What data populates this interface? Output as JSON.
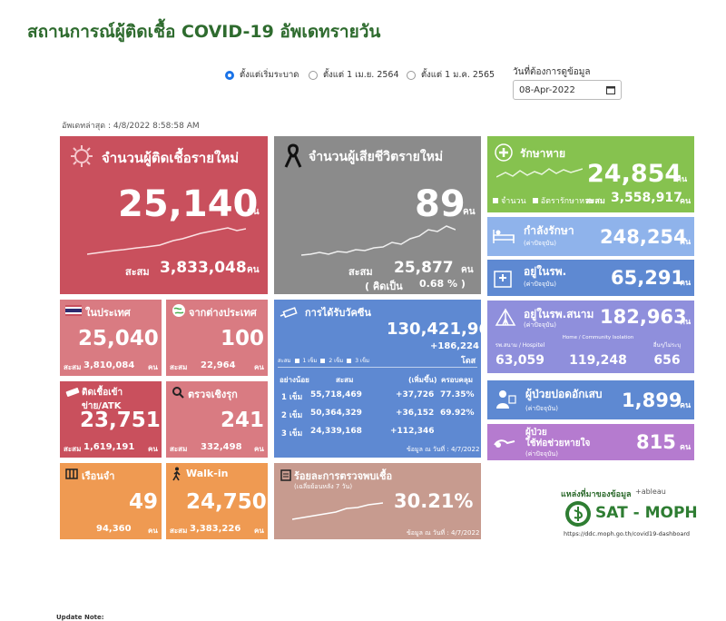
{
  "page": {
    "title": "สถานการณ์ผู้ติดเชื้อ COVID-19 อัพเดทรายวัน",
    "updated": "อัพเดทล่าสุด : 4/8/2022 8:58:58 AM",
    "note": "Update Note:"
  },
  "filters": {
    "options": [
      "ตั้งแต่เริ่มระบาด",
      "ตั้งแต่ 1 เม.ย. 2564",
      "ตั้งแต่ 1 ม.ค. 2565"
    ],
    "selected_index": 0,
    "date_label": "วันที่ต้องการดูข้อมูล",
    "date_value": "08-Apr-2022"
  },
  "new_cases": {
    "title": "จำนวนผู้ติดเชื้อรายใหม่",
    "value": "25,140",
    "unit": "คน",
    "cum_label": "สะสม",
    "cum_value": "3,833,048",
    "cum_unit": "คน"
  },
  "new_deaths": {
    "title": "จำนวนผู้เสียชีวิตรายใหม่",
    "value": "89",
    "unit": "คน",
    "cum_label": "สะสม",
    "cum_value": "25,877",
    "cum_unit": "คน",
    "pct_label": "( คิดเป็น",
    "pct_value": "0.68 % )"
  },
  "recovered": {
    "title": "รักษาหาย",
    "value": "24,854",
    "unit": "คน",
    "legend1": "จำนวน",
    "legend2": "อัตรารักษาหาย",
    "cum_label": "สะสม",
    "cum_value": "3,558,917",
    "cum_unit": "คน"
  },
  "treating": {
    "title": "กำลังรักษา",
    "sub": "(ค่าปัจจุบัน)",
    "value": "248,254",
    "unit": "คน"
  },
  "hospital": {
    "title": "อยู่ในรพ.",
    "sub": "(ค่าปัจจุบัน)",
    "value": "65,291",
    "unit": "คน"
  },
  "field_hospital": {
    "title": "อยู่ในรพ.สนาม",
    "sub": "(ค่าปัจจุบัน)",
    "value": "182,963",
    "unit": "คน",
    "cols": [
      {
        "label": "รพ.สนาม / Hospitel",
        "value": "63,059"
      },
      {
        "label": "Home / Community Isolation",
        "value": "119,248"
      },
      {
        "label": "อื่นๆ/ไม่ระบุ",
        "value": "656"
      }
    ]
  },
  "pneumonia": {
    "title": "ผู้ป่วยปอดอักเสบ",
    "sub": "(ค่าปัจจุบัน)",
    "value": "1,899",
    "unit": "คน"
  },
  "ventilator": {
    "title1": "ผู้ป่วย",
    "title2": "ใช้ท่อช่วยหายใจ",
    "sub": "(ค่าปัจจุบัน)",
    "value": "815",
    "unit": "คน"
  },
  "domestic": {
    "title": "ในประเทศ",
    "value": "25,040",
    "cum_label": "สะสม",
    "cum_value": "3,810,084",
    "cum_unit": "คน"
  },
  "imported": {
    "title": "จากต่างประเทศ",
    "value": "100",
    "cum_label": "สะสม",
    "cum_value": "22,964",
    "cum_unit": "คน"
  },
  "prison": {
    "title": "ติดเชื้อเข้าข่าย/ATK",
    "value": "23,751",
    "cum_label": "สะสม",
    "cum_value": "1,619,191",
    "cum_unit": "คน"
  },
  "proactive": {
    "title": "ตรวจเชิงรุก",
    "value": "241",
    "cum_label": "สะสม",
    "cum_value": "332,498",
    "cum_unit": "คน"
  },
  "jail": {
    "title": "เรือนจำ",
    "value": "49",
    "cum_label": "สะสม",
    "cum_value": "94,360",
    "cum_unit": "คน"
  },
  "walkin": {
    "title": "Walk-in",
    "value": "24,750",
    "cum_label": "สะสม",
    "cum_value": "3,383,226",
    "cum_unit": "คน"
  },
  "vaccine": {
    "title": "การได้รับวัคซีน",
    "total": "130,421,966",
    "delta": "+186,224",
    "unit": "โดส",
    "legend": [
      "สะสม",
      "1 เข็ม",
      "2 เข็ม",
      "3 เข็ม"
    ],
    "headers": [
      "อย่างน้อย",
      "สะสม",
      "(เพิ่มขึ้น)",
      "ครอบคลุม"
    ],
    "rows": [
      {
        "dose": "1 เข็ม",
        "cum": "55,718,469",
        "add": "+37,726",
        "cov": "77.35%"
      },
      {
        "dose": "2 เข็ม",
        "cum": "50,364,329",
        "add": "+36,152",
        "cov": "69.92%"
      },
      {
        "dose": "3 เข็ม",
        "cum": "24,339,168",
        "add": "+112,346",
        "cov": ""
      }
    ],
    "footnote": "ข้อมูล ณ วันที่ : 4/7/2022"
  },
  "positivity": {
    "title": "ร้อยละการตรวจพบเชื้อ",
    "sub": "(เฉลี่ยย้อนหลัง 7 วัน)",
    "value": "30.21%",
    "footnote": "ข้อมูล ณ วันที่ : 4/7/2022"
  },
  "source": {
    "label": "แหล่งที่มาของข้อมูล",
    "tableau": "+ableau",
    "brand": "SAT - MOPH",
    "url": "https://ddc.moph.go.th/covid19-dashboard"
  }
}
